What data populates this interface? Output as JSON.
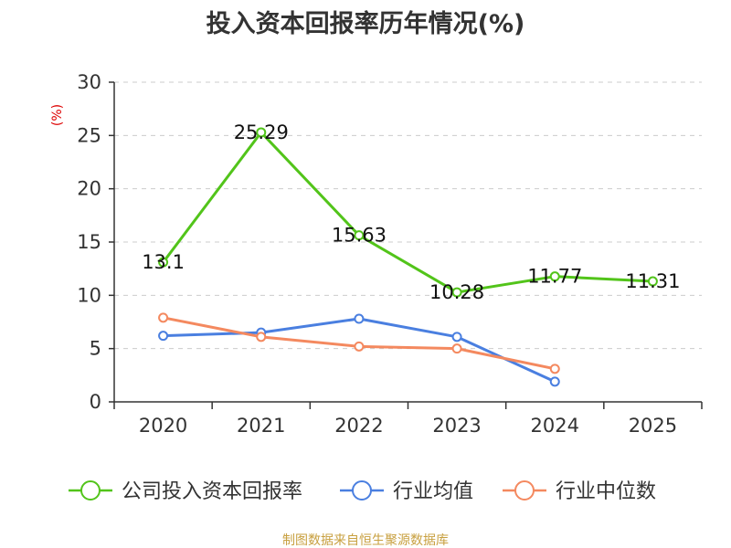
{
  "chart_data": {
    "type": "line",
    "title": "投入资本回报率历年情况(%)",
    "ylabel": "(%)",
    "xlabel": "",
    "categories": [
      "2020",
      "2021",
      "2022",
      "2023",
      "2024",
      "2025"
    ],
    "ylim": [
      0,
      30
    ],
    "yticks": [
      0,
      5,
      10,
      15,
      20,
      25,
      30
    ],
    "grid": true,
    "legend_position": "bottom",
    "series": [
      {
        "name": "公司投入资本回报率",
        "color": "#52c41a",
        "values": [
          13.1,
          25.29,
          15.63,
          10.28,
          11.77,
          11.31
        ],
        "labels": [
          "13.1",
          "25.29",
          "15.63",
          "10.28",
          "11.77",
          "11.31"
        ]
      },
      {
        "name": "行业均值",
        "color": "#4a7fe0",
        "values": [
          6.2,
          6.5,
          7.8,
          6.1,
          1.9,
          null
        ]
      },
      {
        "name": "行业中位数",
        "color": "#f4895f",
        "values": [
          7.9,
          6.1,
          5.2,
          5.0,
          3.1,
          null
        ]
      }
    ]
  },
  "colors": {
    "ylabel": "#dd0000",
    "source": "#c8a040"
  },
  "source_text": "制图数据来自恒生聚源数据库"
}
